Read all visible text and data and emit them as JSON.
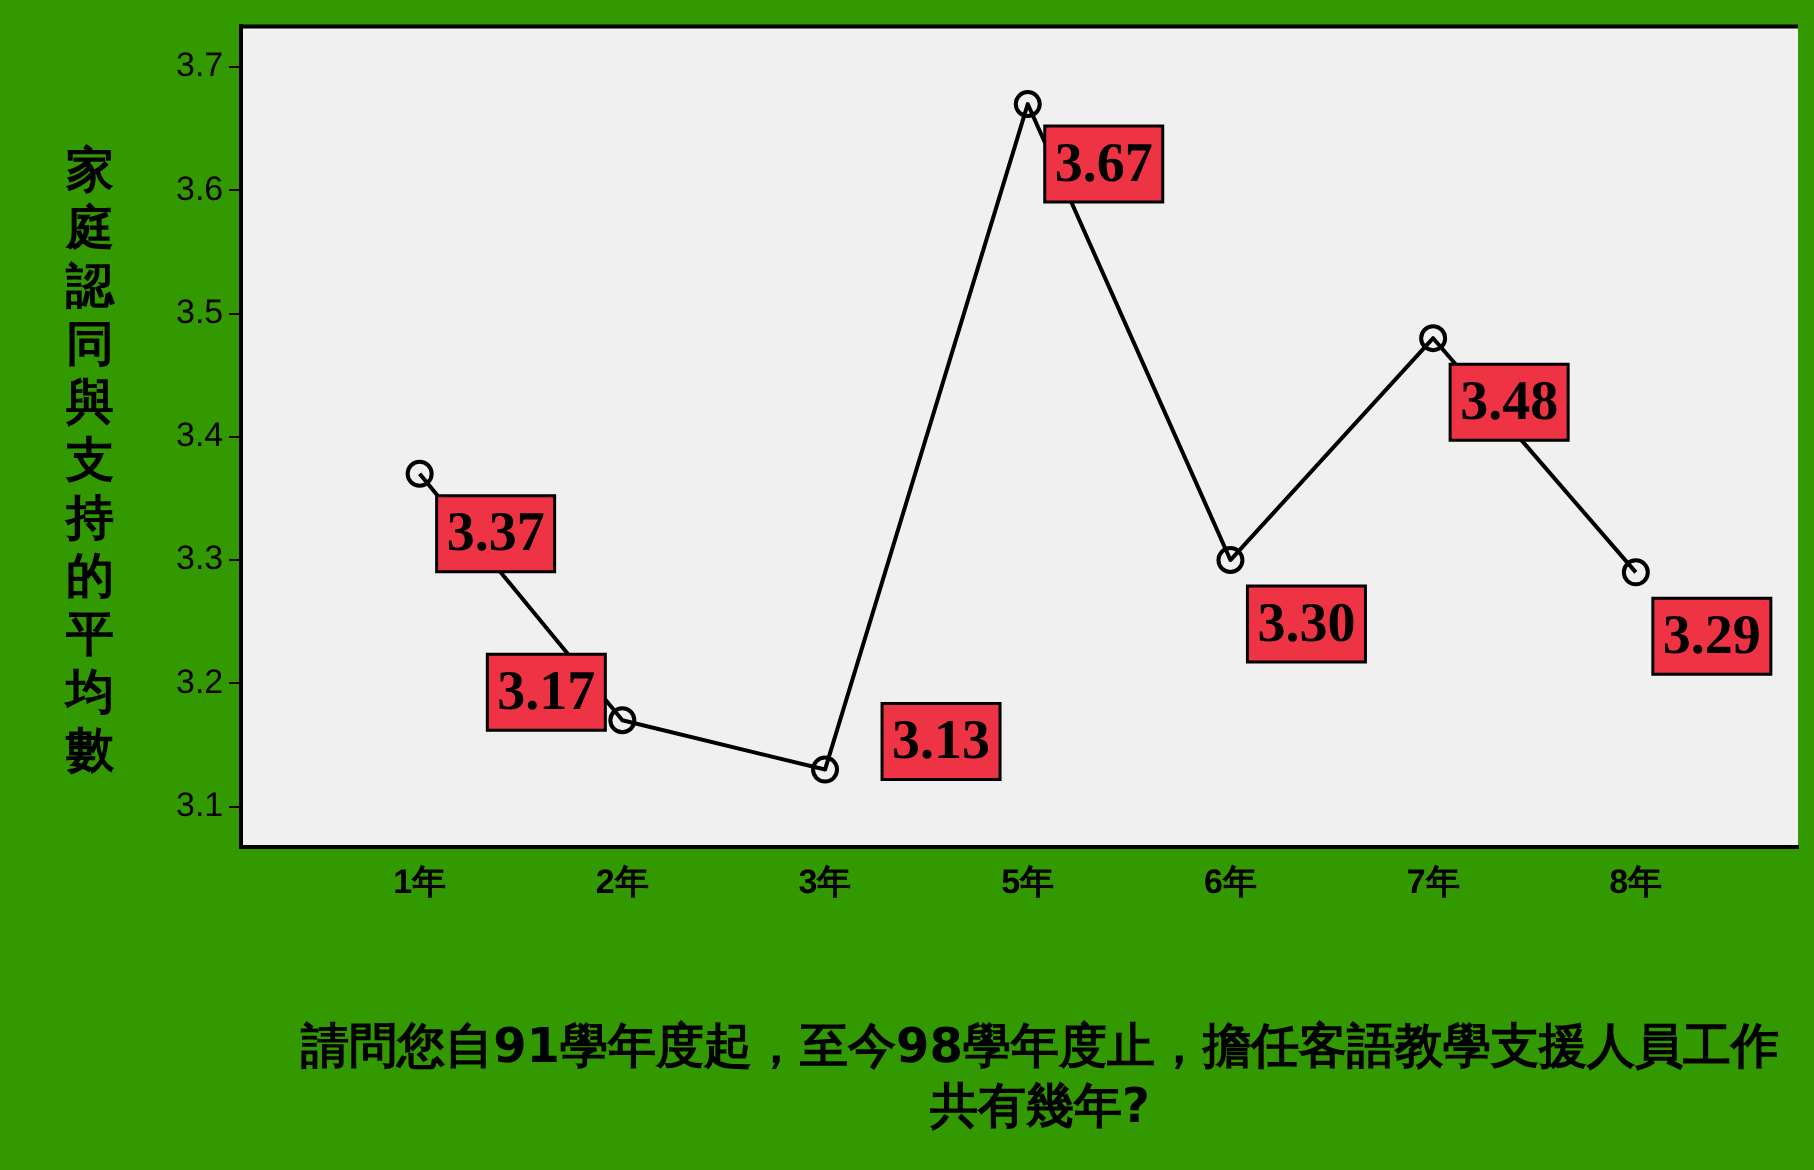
{
  "chart_data": {
    "type": "line",
    "categories": [
      "1年",
      "2年",
      "3年",
      "5年",
      "6年",
      "7年",
      "8年"
    ],
    "series": [
      {
        "color": "#000000",
        "values": [
          3.37,
          3.17,
          3.13,
          3.67,
          3.3,
          3.48,
          3.29
        ],
        "value_labels": [
          "3.37",
          "3.17",
          "3.13",
          "3.67",
          "3.30",
          "3.48",
          "3.29"
        ]
      }
    ],
    "xlabel": "請問您自91學年度起，至今98學年度止，擔任客語教學支援人員工作共有幾年?",
    "ylabel": "家庭認同與支持的平均數",
    "ylim": [
      3.067,
      3.733
    ],
    "yticks": [
      3.1,
      3.2,
      3.3,
      3.4,
      3.5,
      3.6,
      3.7
    ],
    "marker": "circle",
    "line_style": "solid",
    "grid": false,
    "legend": false
  }
}
